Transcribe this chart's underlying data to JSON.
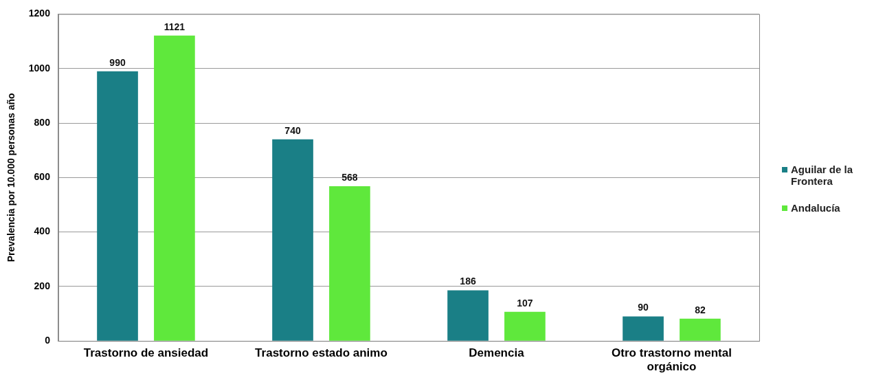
{
  "chart_data": {
    "type": "bar",
    "ylabel": "Prevalencia por 10.000 personas año",
    "categories": [
      "Trastorno de ansiedad",
      "Trastorno estado animo",
      "Demencia",
      "Otro trastorno mental orgánico"
    ],
    "series": [
      {
        "name": "Aguilar de la Frontera",
        "color": "#1a7f86",
        "values": [
          990,
          740,
          186,
          90
        ]
      },
      {
        "name": "Andalucía",
        "color": "#5fe83c",
        "values": [
          1121,
          568,
          107,
          82
        ]
      }
    ],
    "ylim": [
      0,
      1200
    ],
    "yticks": [
      0,
      200,
      400,
      600,
      800,
      1000,
      1200
    ],
    "grid": "y",
    "legend": "right",
    "data_labels": true
  }
}
